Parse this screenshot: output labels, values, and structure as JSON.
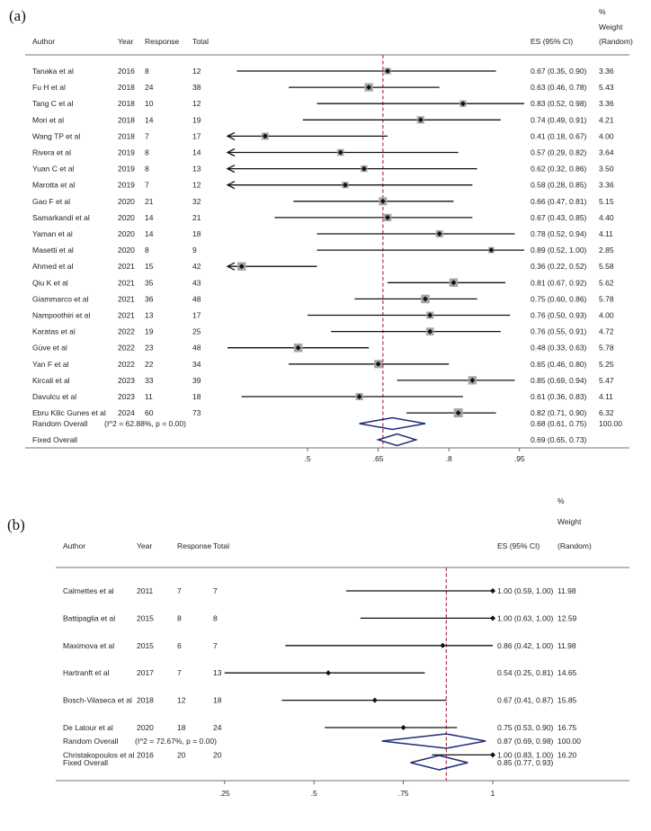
{
  "chart_data": [
    {
      "type": "forest",
      "panel_label": "(a)",
      "headers": {
        "author": "Author",
        "year": "Year",
        "response": "Response",
        "total": "Total",
        "es": "ES (95% CI)",
        "weight_pct": "%",
        "weight_word": "Weight",
        "weight_type": "(Random)"
      },
      "reference_line": 0.66,
      "xlim": [
        0.33,
        0.96
      ],
      "ticks": [
        0.5,
        0.65,
        0.8,
        0.95
      ],
      "tick_labels": [
        ".5",
        ".65",
        ".8",
        ".95"
      ],
      "studies": [
        {
          "author": "Tanaka et al",
          "year": "2016",
          "response": "8",
          "total": "12",
          "es": 0.67,
          "lo": 0.35,
          "hi": 0.9,
          "es_text": "0.67 (0.35, 0.90)",
          "weight": "3.36"
        },
        {
          "author": "Fu H et al",
          "year": "2018",
          "response": "24",
          "total": "38",
          "es": 0.63,
          "lo": 0.46,
          "hi": 0.78,
          "es_text": "0.63 (0.46, 0.78)",
          "weight": "5.43"
        },
        {
          "author": "Tang C et al",
          "year": "2018",
          "response": "10",
          "total": "12",
          "es": 0.83,
          "lo": 0.52,
          "hi": 0.98,
          "es_text": "0.83 (0.52, 0.98)",
          "weight": "3.36"
        },
        {
          "author": "Mori et al",
          "year": "2018",
          "response": "14",
          "total": "19",
          "es": 0.74,
          "lo": 0.49,
          "hi": 0.91,
          "es_text": "0.74 (0.49, 0.91)",
          "weight": "4.21"
        },
        {
          "author": "Wang TP et al",
          "year": "2018",
          "response": "7",
          "total": "17",
          "es": 0.41,
          "lo": 0.18,
          "hi": 0.67,
          "es_text": "0.41 (0.18, 0.67)",
          "weight": "4.00"
        },
        {
          "author": "Rivera et al",
          "year": "2019",
          "response": "8",
          "total": "14",
          "es": 0.57,
          "lo": 0.29,
          "hi": 0.82,
          "es_text": "0.57 (0.29, 0.82)",
          "weight": "3.64"
        },
        {
          "author": "Yuan C et al",
          "year": "2019",
          "response": "8",
          "total": "13",
          "es": 0.62,
          "lo": 0.32,
          "hi": 0.86,
          "es_text": "0.62 (0.32, 0.86)",
          "weight": "3.50"
        },
        {
          "author": "Marotta et al",
          "year": "2019",
          "response": "7",
          "total": "12",
          "es": 0.58,
          "lo": 0.28,
          "hi": 0.85,
          "es_text": "0.58 (0.28, 0.85)",
          "weight": "3.36"
        },
        {
          "author": "Gao F et al",
          "year": "2020",
          "response": "21",
          "total": "32",
          "es": 0.66,
          "lo": 0.47,
          "hi": 0.81,
          "es_text": "0.66 (0.47, 0.81)",
          "weight": "5.15"
        },
        {
          "author": "Samarkandi et al",
          "year": "2020",
          "response": "14",
          "total": "21",
          "es": 0.67,
          "lo": 0.43,
          "hi": 0.85,
          "es_text": "0.67 (0.43, 0.85)",
          "weight": "4.40"
        },
        {
          "author": "Yaman et al",
          "year": "2020",
          "response": "14",
          "total": "18",
          "es": 0.78,
          "lo": 0.52,
          "hi": 0.94,
          "es_text": "0.78 (0.52, 0.94)",
          "weight": "4.11"
        },
        {
          "author": "Masetti et al",
          "year": "2020",
          "response": "8",
          "total": "9",
          "es": 0.89,
          "lo": 0.52,
          "hi": 1.0,
          "es_text": "0.89 (0.52, 1.00)",
          "weight": "2.85"
        },
        {
          "author": "Ahmed et al",
          "year": "2021",
          "response": "15",
          "total": "42",
          "es": 0.36,
          "lo": 0.22,
          "hi": 0.52,
          "es_text": "0.36 (0.22, 0.52)",
          "weight": "5.58"
        },
        {
          "author": "Qiu K et al",
          "year": "2021",
          "response": "35",
          "total": "43",
          "es": 0.81,
          "lo": 0.67,
          "hi": 0.92,
          "es_text": "0.81 (0.67, 0.92)",
          "weight": "5.62"
        },
        {
          "author": "Giammarco et al",
          "year": "2021",
          "response": "36",
          "total": "48",
          "es": 0.75,
          "lo": 0.6,
          "hi": 0.86,
          "es_text": "0.75 (0.60, 0.86)",
          "weight": "5.78"
        },
        {
          "author": "Nampoothiri et al",
          "year": "2021",
          "response": "13",
          "total": "17",
          "es": 0.76,
          "lo": 0.5,
          "hi": 0.93,
          "es_text": "0.76 (0.50, 0.93)",
          "weight": "4.00"
        },
        {
          "author": "Karatas et al",
          "year": "2022",
          "response": "19",
          "total": "25",
          "es": 0.76,
          "lo": 0.55,
          "hi": 0.91,
          "es_text": "0.76 (0.55, 0.91)",
          "weight": "4.72"
        },
        {
          "author": "Güve et al",
          "year": "2022",
          "response": "23",
          "total": "48",
          "es": 0.48,
          "lo": 0.33,
          "hi": 0.63,
          "es_text": "0.48 (0.33, 0.63)",
          "weight": "5.78"
        },
        {
          "author": "Yan F et al",
          "year": "2022",
          "response": "22",
          "total": "34",
          "es": 0.65,
          "lo": 0.46,
          "hi": 0.8,
          "es_text": "0.65 (0.46, 0.80)",
          "weight": "5.25"
        },
        {
          "author": "Kircali et al",
          "year": "2023",
          "response": "33",
          "total": "39",
          "es": 0.85,
          "lo": 0.69,
          "hi": 0.94,
          "es_text": "0.85 (0.69, 0.94)",
          "weight": "5.47"
        },
        {
          "author": "Davulcu et al",
          "year": "2023",
          "response": "11",
          "total": "18",
          "es": 0.61,
          "lo": 0.36,
          "hi": 0.83,
          "es_text": "0.61 (0.36, 0.83)",
          "weight": "4.11"
        },
        {
          "author": "Ebru Kilic Gunes et al",
          "year": "2024",
          "response": "60",
          "total": "73",
          "es": 0.82,
          "lo": 0.71,
          "hi": 0.9,
          "es_text": "0.82 (0.71, 0.90)",
          "weight": "6.32"
        }
      ],
      "random": {
        "label": "Random Overall",
        "stat": "(I^2 = 62.88%, p = 0.00)",
        "es": 0.68,
        "lo": 0.61,
        "hi": 0.75,
        "es_text": "0.68 (0.61, 0.75)",
        "weight": "100.00"
      },
      "fixed": {
        "label": "Fixed Overall",
        "es": 0.69,
        "lo": 0.65,
        "hi": 0.73,
        "es_text": "0.69 (0.65, 0.73)"
      }
    },
    {
      "type": "forest",
      "panel_label": "(b)",
      "headers": {
        "author": "Author",
        "year": "Year",
        "response": "Response",
        "total": "Total",
        "es": "ES (95% CI)",
        "weight_pct": "%",
        "weight_word": "Weight",
        "weight_type": "(Random)"
      },
      "reference_line": 0.87,
      "xlim": [
        0.15,
        1.02
      ],
      "ticks": [
        0.25,
        0.5,
        0.75,
        1
      ],
      "tick_labels": [
        ".25",
        ".5",
        ".75",
        "1"
      ],
      "studies": [
        {
          "author": "Calmettes et al",
          "year": "2011",
          "response": "7",
          "total": "7",
          "es": 1.0,
          "lo": 0.59,
          "hi": 1.0,
          "es_text": "1.00 (0.59, 1.00)",
          "weight": "11.98"
        },
        {
          "author": "Battipaglia et al",
          "year": "2015",
          "response": "8",
          "total": "8",
          "es": 1.0,
          "lo": 0.63,
          "hi": 1.0,
          "es_text": "1.00 (0.63, 1.00)",
          "weight": "12.59"
        },
        {
          "author": "Maximova et al",
          "year": "2015",
          "response": "6",
          "total": "7",
          "es": 0.86,
          "lo": 0.42,
          "hi": 1.0,
          "es_text": "0.86 (0.42, 1.00)",
          "weight": "11.98"
        },
        {
          "author": "Hartranft et al",
          "year": "2017",
          "response": "7",
          "total": "13",
          "es": 0.54,
          "lo": 0.25,
          "hi": 0.81,
          "es_text": "0.54 (0.25, 0.81)",
          "weight": "14.65"
        },
        {
          "author": "Bosch-Vilaseca et al",
          "year": "2018",
          "response": "12",
          "total": "18",
          "es": 0.67,
          "lo": 0.41,
          "hi": 0.87,
          "es_text": "0.67 (0.41, 0.87)",
          "weight": "15.85"
        },
        {
          "author": "De Latour et al",
          "year": "2020",
          "response": "18",
          "total": "24",
          "es": 0.75,
          "lo": 0.53,
          "hi": 0.9,
          "es_text": "0.75 (0.53, 0.90)",
          "weight": "16.75"
        },
        {
          "author": "Christakopoulos et al",
          "year": "2016",
          "response": "20",
          "total": "20",
          "es": 1.0,
          "lo": 0.83,
          "hi": 1.0,
          "es_text": "1.00 (0.83, 1.00)",
          "weight": "16.20"
        }
      ],
      "random": {
        "label": "Random Overall",
        "stat": "(I^2 = 72.67%, p = 0.00)",
        "es": 0.87,
        "lo": 0.69,
        "hi": 0.98,
        "es_text": "0.87 (0.69, 0.98)",
        "weight": "100.00"
      },
      "fixed": {
        "label": "Fixed Overall",
        "es": 0.85,
        "lo": 0.77,
        "hi": 0.93,
        "es_text": "0.85 (0.77, 0.93)"
      }
    }
  ],
  "colors": {
    "line": "#111111",
    "weight_box": "#a6a6a6",
    "reference": "#b0384a",
    "diamond": "#1f2c7a",
    "axis": "#444444"
  }
}
